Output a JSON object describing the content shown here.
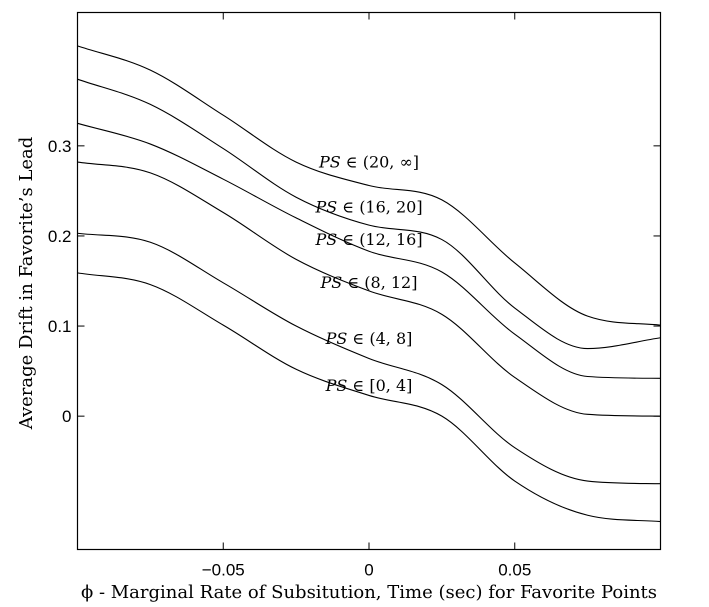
{
  "chart_data": {
    "type": "line",
    "title": "",
    "xlabel": "ϕ - Marginal Rate of Subsitution, Time (sec) for Favorite Points",
    "ylabel": "Average Drift in Favorite’s Lead",
    "xlim": [
      -0.1,
      0.1
    ],
    "ylim": [
      -0.148,
      0.448
    ],
    "xticks": [
      -0.05,
      0,
      0.05
    ],
    "xtick_labels": [
      "−0.05",
      "0",
      "0.05"
    ],
    "yticks": [
      0,
      0.1,
      0.2,
      0.3
    ],
    "ytick_labels": [
      "0",
      "0.1",
      "0.2",
      "0.3"
    ],
    "grid": false,
    "legend": "none",
    "series": [
      {
        "name": "PS ∈ (20, ∞]",
        "x": [
          -0.1,
          -0.075,
          -0.05,
          -0.025,
          0,
          0.025,
          0.05,
          0.075,
          0.1
        ],
        "y": [
          0.411,
          0.384,
          0.334,
          0.282,
          0.256,
          0.24,
          0.17,
          0.111,
          0.101
        ]
      },
      {
        "name": "PS ∈ (16, 20]",
        "x": [
          -0.1,
          -0.075,
          -0.05,
          -0.025,
          0,
          0.025,
          0.05,
          0.075,
          0.1
        ],
        "y": [
          0.374,
          0.346,
          0.297,
          0.243,
          0.212,
          0.196,
          0.12,
          0.075,
          0.087
        ]
      },
      {
        "name": "PS ∈ (12, 16]",
        "x": [
          -0.1,
          -0.075,
          -0.05,
          -0.025,
          0,
          0.025,
          0.05,
          0.075,
          0.1
        ],
        "y": [
          0.325,
          0.302,
          0.263,
          0.22,
          0.183,
          0.16,
          0.091,
          0.044,
          0.042
        ]
      },
      {
        "name": "PS ∈ (8, 12]",
        "x": [
          -0.1,
          -0.075,
          -0.05,
          -0.025,
          0,
          0.025,
          0.05,
          0.075,
          0.1
        ],
        "y": [
          0.282,
          0.27,
          0.226,
          0.174,
          0.139,
          0.113,
          0.043,
          0.002,
          0.0
        ]
      },
      {
        "name": "PS ∈ (4, 8]",
        "x": [
          -0.1,
          -0.075,
          -0.05,
          -0.025,
          0,
          0.025,
          0.05,
          0.075,
          0.1
        ],
        "y": [
          0.203,
          0.193,
          0.148,
          0.1,
          0.064,
          0.035,
          -0.035,
          -0.072,
          -0.075
        ]
      },
      {
        "name": "PS ∈ [0, 4]",
        "x": [
          -0.1,
          -0.075,
          -0.05,
          -0.025,
          0,
          0.025,
          0.05,
          0.075,
          0.1
        ],
        "y": [
          0.159,
          0.146,
          0.101,
          0.052,
          0.023,
          0.0,
          -0.072,
          -0.11,
          -0.117
        ]
      }
    ],
    "annotations": [
      {
        "text_parts": [
          "PS",
          " ∈ (20, ∞]"
        ],
        "series": "PS ∈ (20, ∞]",
        "x": 0.0,
        "y": 0.276
      },
      {
        "text_parts": [
          "PS",
          " ∈ (16, 20]"
        ],
        "series": "PS ∈ (16, 20]",
        "x": 0.0,
        "y": 0.226
      },
      {
        "text_parts": [
          "PS",
          " ∈ (12, 16]"
        ],
        "series": "PS ∈ (12, 16]",
        "x": 0.0,
        "y": 0.19
      },
      {
        "text_parts": [
          "PS",
          " ∈ (8, 12]"
        ],
        "series": "PS ∈ (8, 12]",
        "x": 0.0,
        "y": 0.142
      },
      {
        "text_parts": [
          "PS",
          " ∈ (4, 8]"
        ],
        "series": "PS ∈ (4, 8]",
        "x": 0.0,
        "y": 0.08
      },
      {
        "text_parts": [
          "PS",
          " ∈ [0, 4]"
        ],
        "series": "PS ∈ [0, 4]",
        "x": 0.0,
        "y": 0.028
      }
    ]
  }
}
